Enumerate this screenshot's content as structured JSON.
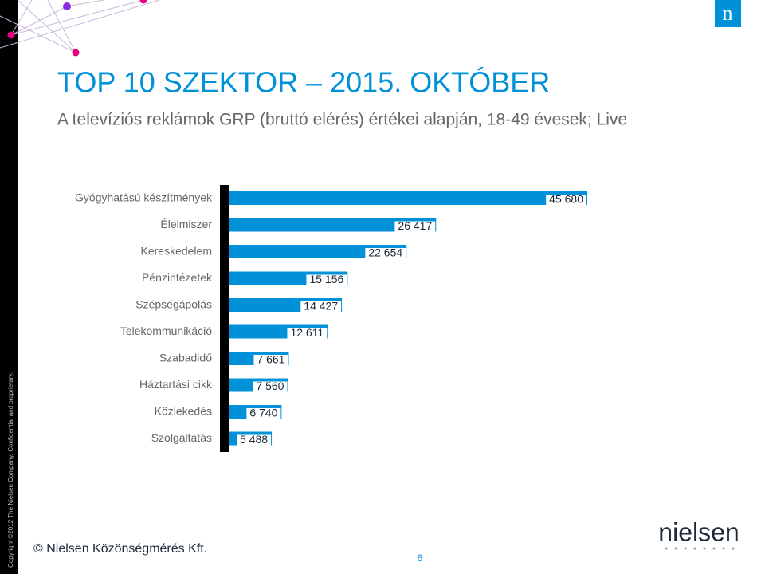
{
  "chart_data": {
    "type": "bar",
    "orientation": "horizontal",
    "title": "TOP 10 SZEKTOR – 2015. OKTÓBER",
    "subtitle": "A televíziós reklámok GRP (bruttó elérés) értékei alapján, 18-49 évesek; Live",
    "categories": [
      "Gyógyhatású készítmények",
      "Élelmiszer",
      "Kereskedelem",
      "Pénzintézetek",
      "Szépségápolás",
      "Telekommunikáció",
      "Szabadidő",
      "Háztartási cikk",
      "Közlekedés",
      "Szolgáltatás"
    ],
    "values": [
      45680,
      26417,
      22654,
      15156,
      14427,
      12611,
      7661,
      7560,
      6740,
      5488
    ],
    "value_labels": [
      "45 680",
      "26 417",
      "22 654",
      "15 156",
      "14 427",
      "12 611",
      "7 661",
      "7 560",
      "6 740",
      "5 488"
    ],
    "color": "#0091d8"
  },
  "brand_icon": "n",
  "footer_text": "© Nielsen Közönségmérés Kft.",
  "page_number": "6",
  "logo_text": "nielsen",
  "copyright": "Copyright ©2012 The Nielsen Company. Confidential and proprietary."
}
